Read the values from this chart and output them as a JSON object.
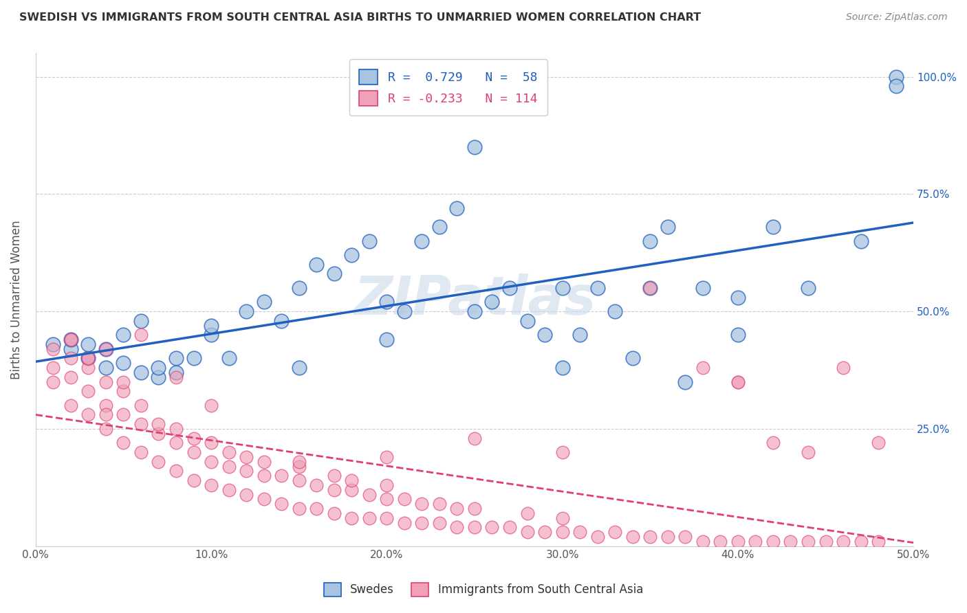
{
  "title": "SWEDISH VS IMMIGRANTS FROM SOUTH CENTRAL ASIA BIRTHS TO UNMARRIED WOMEN CORRELATION CHART",
  "source": "Source: ZipAtlas.com",
  "ylabel": "Births to Unmarried Women",
  "y_tick_labels": [
    "25.0%",
    "50.0%",
    "75.0%",
    "100.0%"
  ],
  "y_tick_values": [
    0.25,
    0.5,
    0.75,
    1.0
  ],
  "x_tick_labels": [
    "0.0%",
    "10.0%",
    "20.0%",
    "30.0%",
    "40.0%",
    "50.0%"
  ],
  "x_tick_values": [
    0.0,
    0.1,
    0.2,
    0.3,
    0.4,
    0.5
  ],
  "blue_R": 0.729,
  "blue_N": 58,
  "pink_R": -0.233,
  "pink_N": 114,
  "blue_color": "#a8c4e0",
  "pink_color": "#f0a0b8",
  "blue_line_color": "#2060c0",
  "pink_line_color": "#e04070",
  "legend_label_blue": "Swedes",
  "legend_label_pink": "Immigrants from South Central Asia",
  "watermark": "ZIPatlas",
  "background_color": "#ffffff",
  "grid_color": "#cccccc",
  "blue_scatter_x": [
    0.01,
    0.02,
    0.02,
    0.03,
    0.03,
    0.04,
    0.04,
    0.05,
    0.05,
    0.06,
    0.06,
    0.07,
    0.07,
    0.08,
    0.08,
    0.09,
    0.1,
    0.1,
    0.11,
    0.12,
    0.13,
    0.14,
    0.15,
    0.16,
    0.17,
    0.18,
    0.19,
    0.2,
    0.21,
    0.22,
    0.23,
    0.24,
    0.25,
    0.26,
    0.27,
    0.28,
    0.29,
    0.3,
    0.31,
    0.32,
    0.33,
    0.34,
    0.35,
    0.36,
    0.37,
    0.38,
    0.4,
    0.42,
    0.44,
    0.47,
    0.49,
    0.15,
    0.2,
    0.25,
    0.3,
    0.35,
    0.4,
    0.49
  ],
  "blue_scatter_y": [
    0.43,
    0.42,
    0.44,
    0.4,
    0.43,
    0.38,
    0.42,
    0.39,
    0.45,
    0.37,
    0.48,
    0.36,
    0.38,
    0.37,
    0.4,
    0.4,
    0.45,
    0.47,
    0.4,
    0.5,
    0.52,
    0.48,
    0.55,
    0.6,
    0.58,
    0.62,
    0.65,
    0.52,
    0.5,
    0.65,
    0.68,
    0.72,
    0.5,
    0.52,
    0.55,
    0.48,
    0.45,
    0.55,
    0.45,
    0.55,
    0.5,
    0.4,
    0.65,
    0.68,
    0.35,
    0.55,
    0.53,
    0.68,
    0.55,
    0.65,
    1.0,
    0.38,
    0.44,
    0.85,
    0.38,
    0.55,
    0.45,
    0.98
  ],
  "pink_scatter_x": [
    0.01,
    0.01,
    0.01,
    0.02,
    0.02,
    0.02,
    0.02,
    0.03,
    0.03,
    0.03,
    0.03,
    0.04,
    0.04,
    0.04,
    0.04,
    0.05,
    0.05,
    0.05,
    0.05,
    0.06,
    0.06,
    0.06,
    0.07,
    0.07,
    0.07,
    0.08,
    0.08,
    0.08,
    0.09,
    0.09,
    0.09,
    0.1,
    0.1,
    0.1,
    0.11,
    0.11,
    0.11,
    0.12,
    0.12,
    0.12,
    0.13,
    0.13,
    0.13,
    0.14,
    0.14,
    0.15,
    0.15,
    0.15,
    0.16,
    0.16,
    0.17,
    0.17,
    0.17,
    0.18,
    0.18,
    0.18,
    0.19,
    0.19,
    0.2,
    0.2,
    0.2,
    0.21,
    0.21,
    0.22,
    0.22,
    0.23,
    0.23,
    0.24,
    0.24,
    0.25,
    0.25,
    0.26,
    0.27,
    0.28,
    0.28,
    0.29,
    0.3,
    0.3,
    0.31,
    0.32,
    0.33,
    0.34,
    0.35,
    0.36,
    0.37,
    0.38,
    0.39,
    0.4,
    0.41,
    0.42,
    0.43,
    0.44,
    0.45,
    0.46,
    0.47,
    0.48,
    0.35,
    0.38,
    0.4,
    0.42,
    0.44,
    0.46,
    0.48,
    0.4,
    0.3,
    0.25,
    0.2,
    0.15,
    0.1,
    0.08,
    0.06,
    0.04,
    0.03,
    0.02
  ],
  "pink_scatter_y": [
    0.38,
    0.42,
    0.35,
    0.4,
    0.44,
    0.3,
    0.36,
    0.28,
    0.33,
    0.38,
    0.4,
    0.25,
    0.3,
    0.35,
    0.28,
    0.22,
    0.28,
    0.33,
    0.35,
    0.2,
    0.26,
    0.3,
    0.18,
    0.24,
    0.26,
    0.16,
    0.22,
    0.25,
    0.14,
    0.2,
    0.23,
    0.13,
    0.18,
    0.22,
    0.12,
    0.17,
    0.2,
    0.11,
    0.16,
    0.19,
    0.1,
    0.15,
    0.18,
    0.09,
    0.15,
    0.08,
    0.14,
    0.17,
    0.08,
    0.13,
    0.07,
    0.12,
    0.15,
    0.06,
    0.12,
    0.14,
    0.06,
    0.11,
    0.06,
    0.1,
    0.13,
    0.05,
    0.1,
    0.05,
    0.09,
    0.05,
    0.09,
    0.04,
    0.08,
    0.04,
    0.08,
    0.04,
    0.04,
    0.03,
    0.07,
    0.03,
    0.03,
    0.06,
    0.03,
    0.02,
    0.03,
    0.02,
    0.02,
    0.02,
    0.02,
    0.01,
    0.01,
    0.01,
    0.01,
    0.01,
    0.01,
    0.01,
    0.01,
    0.01,
    0.01,
    0.01,
    0.55,
    0.38,
    0.35,
    0.22,
    0.2,
    0.38,
    0.22,
    0.35,
    0.2,
    0.23,
    0.19,
    0.18,
    0.3,
    0.36,
    0.45,
    0.42,
    0.4,
    0.44
  ]
}
